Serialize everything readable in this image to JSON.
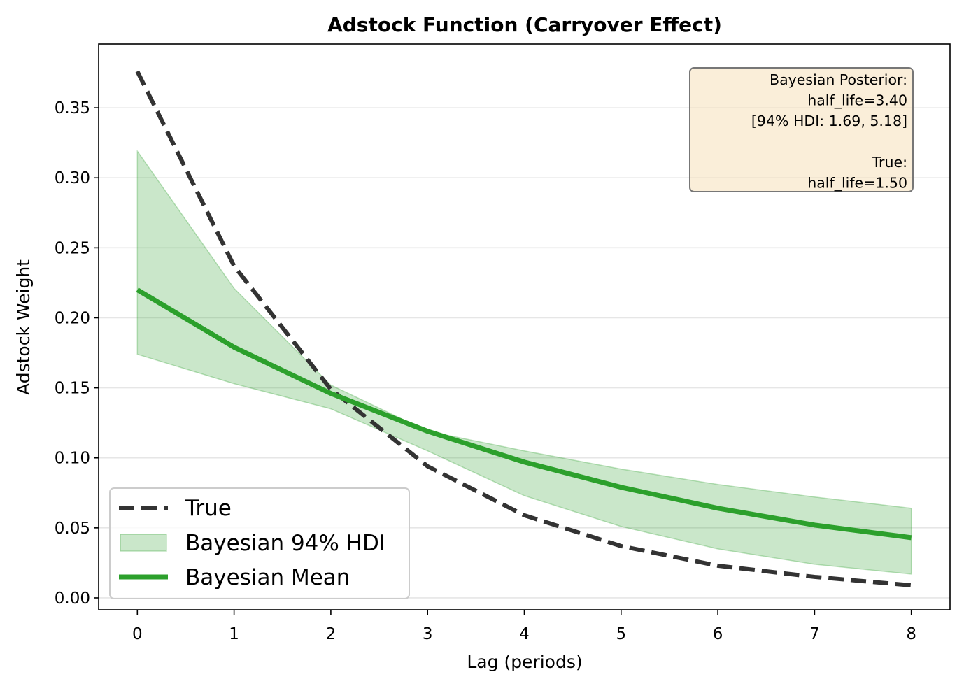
{
  "chart_data": {
    "type": "line",
    "title": "Adstock Function (Carryover Effect)",
    "xlabel": "Lag (periods)",
    "ylabel": "Adstock Weight",
    "x": [
      0,
      1,
      2,
      3,
      4,
      5,
      6,
      7,
      8
    ],
    "xlim": [
      -0.4,
      8.4
    ],
    "ylim": [
      -0.0085,
      0.3955
    ],
    "xticks": [
      0,
      1,
      2,
      3,
      4,
      5,
      6,
      7,
      8
    ],
    "yticks": [
      0.0,
      0.05,
      0.1,
      0.15,
      0.2,
      0.25,
      0.3,
      0.35
    ],
    "ytick_labels": [
      "0.00",
      "0.05",
      "0.10",
      "0.15",
      "0.20",
      "0.25",
      "0.30",
      "0.35"
    ],
    "grid": "horizontal",
    "series": [
      {
        "name": "True",
        "style": "dashed",
        "color": "#333333",
        "values": [
          0.376,
          0.237,
          0.149,
          0.094,
          0.059,
          0.037,
          0.023,
          0.015,
          0.009
        ]
      },
      {
        "name": "Bayesian Mean",
        "style": "solid",
        "color": "#2ca02c",
        "values": [
          0.22,
          0.179,
          0.146,
          0.119,
          0.097,
          0.079,
          0.064,
          0.052,
          0.043
        ]
      }
    ],
    "band": {
      "name": "Bayesian 94% HDI",
      "color": "#2ca02c",
      "lower": [
        0.174,
        0.153,
        0.135,
        0.105,
        0.073,
        0.051,
        0.035,
        0.024,
        0.017
      ],
      "upper": [
        0.319,
        0.221,
        0.152,
        0.119,
        0.105,
        0.092,
        0.081,
        0.072,
        0.064
      ]
    },
    "legend": {
      "placement": "lower-left",
      "entries": [
        "True",
        "Bayesian 94% HDI",
        "Bayesian Mean"
      ]
    },
    "annotation": {
      "placement": "top-right",
      "lines": [
        "Bayesian Posterior:",
        "half_life=3.40",
        "[94% HDI: 1.69, 5.18]",
        "",
        "True:",
        "half_life=1.50"
      ]
    }
  }
}
